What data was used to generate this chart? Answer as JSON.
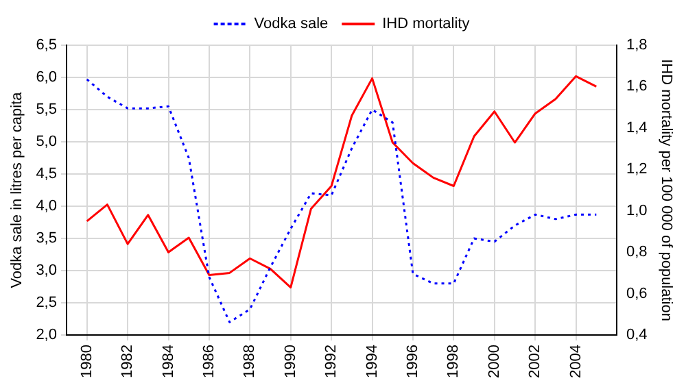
{
  "chart_data": {
    "type": "line",
    "ylabel": "Vodka sale in litres per capita",
    "y2label": "IHD mortality per 100 000 of population",
    "x": [
      1980,
      1981,
      1982,
      1983,
      1984,
      1985,
      1986,
      1987,
      1988,
      1989,
      1990,
      1991,
      1992,
      1993,
      1994,
      1995,
      1996,
      1997,
      1998,
      1999,
      2000,
      2001,
      2002,
      2003,
      2004,
      2005
    ],
    "series": [
      {
        "name": "Vodka sale",
        "color": "#0000ff",
        "line_style": "dotted",
        "values": [
          5.97,
          5.7,
          5.52,
          5.52,
          5.55,
          4.75,
          2.9,
          2.2,
          2.4,
          3.05,
          3.65,
          4.2,
          4.17,
          4.9,
          5.5,
          5.3,
          2.95,
          2.8,
          2.8,
          3.5,
          3.45,
          3.7,
          3.87,
          3.8,
          3.87,
          3.87
        ]
      },
      {
        "name": "IHD mortality",
        "color": "#ff0000",
        "line_style": "solid",
        "axis": "y2",
        "values": [
          0.95,
          1.03,
          0.84,
          0.98,
          0.8,
          0.87,
          0.69,
          0.7,
          0.77,
          0.72,
          0.63,
          1.01,
          1.12,
          1.46,
          1.64,
          1.33,
          1.23,
          1.16,
          1.12,
          1.36,
          1.48,
          1.33,
          1.47,
          1.54,
          1.65,
          1.6
        ]
      }
    ],
    "xlim": [
      1979,
      2006
    ],
    "xticks": [
      1980,
      1982,
      1984,
      1986,
      1988,
      1990,
      1992,
      1994,
      1996,
      1998,
      2000,
      2002,
      2004
    ],
    "ylim": [
      2,
      6.5
    ],
    "yticks": [
      {
        "value": 2,
        "label": "2,0"
      },
      {
        "value": 2.5,
        "label": "2,5"
      },
      {
        "value": 3,
        "label": "3,0"
      },
      {
        "value": 3.5,
        "label": "3,5"
      },
      {
        "value": 4,
        "label": "4,0"
      },
      {
        "value": 4.5,
        "label": "4,5"
      },
      {
        "value": 5,
        "label": "5,0"
      },
      {
        "value": 5.5,
        "label": "5,5"
      },
      {
        "value": 6,
        "label": "6,0"
      },
      {
        "value": 6.5,
        "label": "6,5"
      }
    ],
    "y2lim": [
      0.4,
      1.8
    ],
    "y2ticks": [
      {
        "value": 0.4,
        "label": "0,4"
      },
      {
        "value": 0.6,
        "label": "0,6"
      },
      {
        "value": 0.8,
        "label": "0,8"
      },
      {
        "value": 1,
        "label": "1,0"
      },
      {
        "value": 1.2,
        "label": "1,2"
      },
      {
        "value": 1.4,
        "label": "1,4"
      },
      {
        "value": 1.6,
        "label": "1,6"
      },
      {
        "value": 1.8,
        "label": "1,8"
      }
    ],
    "grid": true,
    "legend": "top",
    "marker": "none"
  }
}
